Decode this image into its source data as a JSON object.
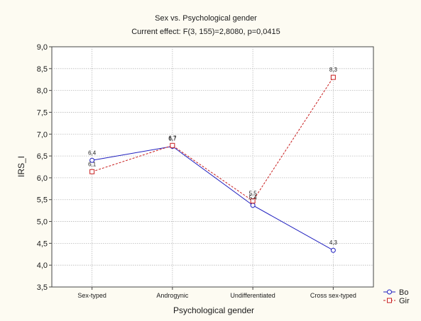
{
  "chart_data": {
    "type": "line",
    "title": "Sex vs. Psychological gender",
    "subtitle": "Current effect: F(3, 155)=2,8080, p=0,0415",
    "xlabel": "Psychological gender",
    "ylabel": "IRS_I",
    "categories": [
      "Sex-typed",
      "Androgynic",
      "Undifferentiated",
      "Cross sex-typed"
    ],
    "ylim": [
      3.5,
      9.0
    ],
    "yticks": [
      "3,5",
      "4,0",
      "4,5",
      "5,0",
      "5,5",
      "6,0",
      "6,5",
      "7,0",
      "7,5",
      "8,0",
      "8,5",
      "9,0"
    ],
    "grid": true,
    "legend_position": "bottom-right",
    "series": [
      {
        "name": "Bo",
        "color": "#1f1fbf",
        "marker": "circle",
        "line_style": "solid",
        "values": [
          6.4,
          6.72,
          5.37,
          4.34
        ],
        "data_labels": [
          "6,4",
          "6,7",
          "5,4",
          "4,3"
        ]
      },
      {
        "name": "Gir",
        "color": "#c81e1e",
        "marker": "square",
        "line_style": "dashed",
        "values": [
          6.14,
          6.74,
          5.47,
          8.3
        ],
        "data_labels": [
          "6,1",
          "6,7",
          "5,5",
          "8,3"
        ]
      }
    ]
  }
}
